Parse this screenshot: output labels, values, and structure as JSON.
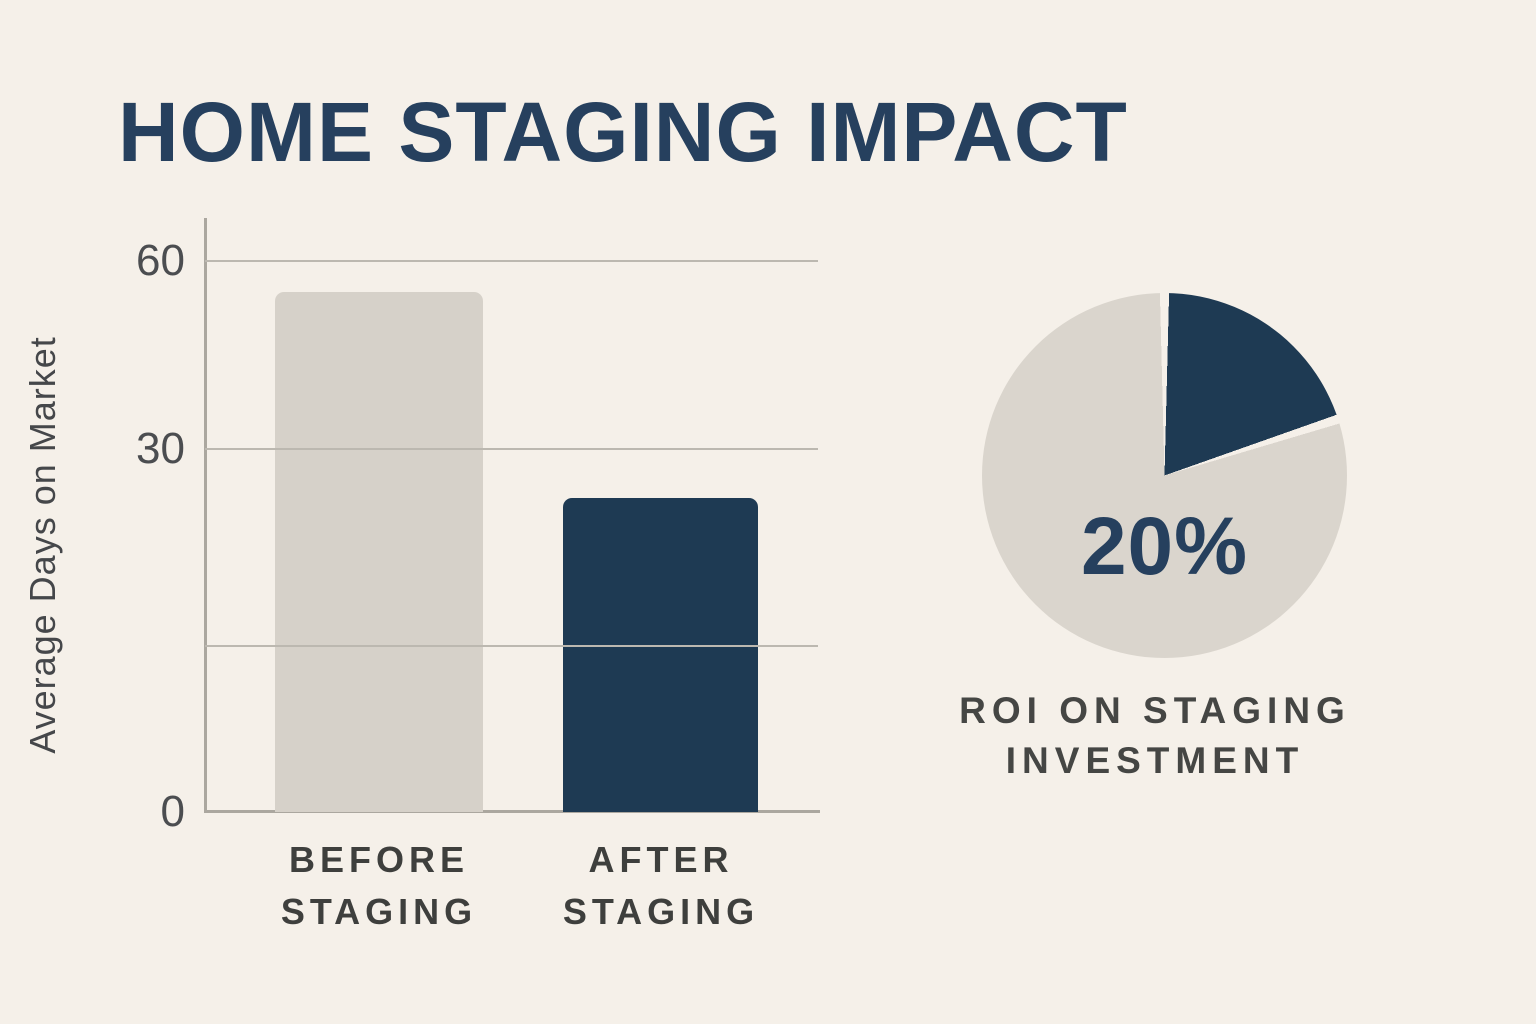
{
  "background": "#f5f0e9",
  "header": {
    "title": "HOME STAGING IMPACT",
    "color": "#26405e"
  },
  "chart_data": [
    {
      "type": "bar",
      "title": "",
      "ylabel": "Average Days on Market",
      "xlabel": "",
      "categories": [
        "BEFORE STAGING",
        "AFTER STAGING"
      ],
      "category_labels": [
        "BEFORE\nSTAGING",
        "AFTER\nSTAGING"
      ],
      "values": [
        55,
        26
      ],
      "bar_colors": [
        "#d6d1c9",
        "#1e3a53"
      ],
      "ylim": [
        0,
        60
      ],
      "grid": true,
      "yticks": [
        {
          "value": 60,
          "label": "60",
          "pos": 0.0
        },
        {
          "value": 30,
          "label": "30",
          "pos": 0.341
        },
        {
          "value": 14,
          "label": "",
          "pos": 0.699
        },
        {
          "value": 0,
          "label": "0",
          "pos": 1.0
        }
      ]
    },
    {
      "type": "pie",
      "slices": [
        {
          "label": "20%",
          "value": 20,
          "color": "#1e3a53"
        },
        {
          "label": "",
          "value": 80,
          "color": "#dad5cd"
        }
      ],
      "start_angle": "12 o'clock, clockwise",
      "center_label": "20%",
      "center_label_color": "#26405e",
      "caption": "ROI ON STAGING INVESTMENT",
      "caption_label": "ROI ON STAGING\nINVESTMENT"
    }
  ]
}
